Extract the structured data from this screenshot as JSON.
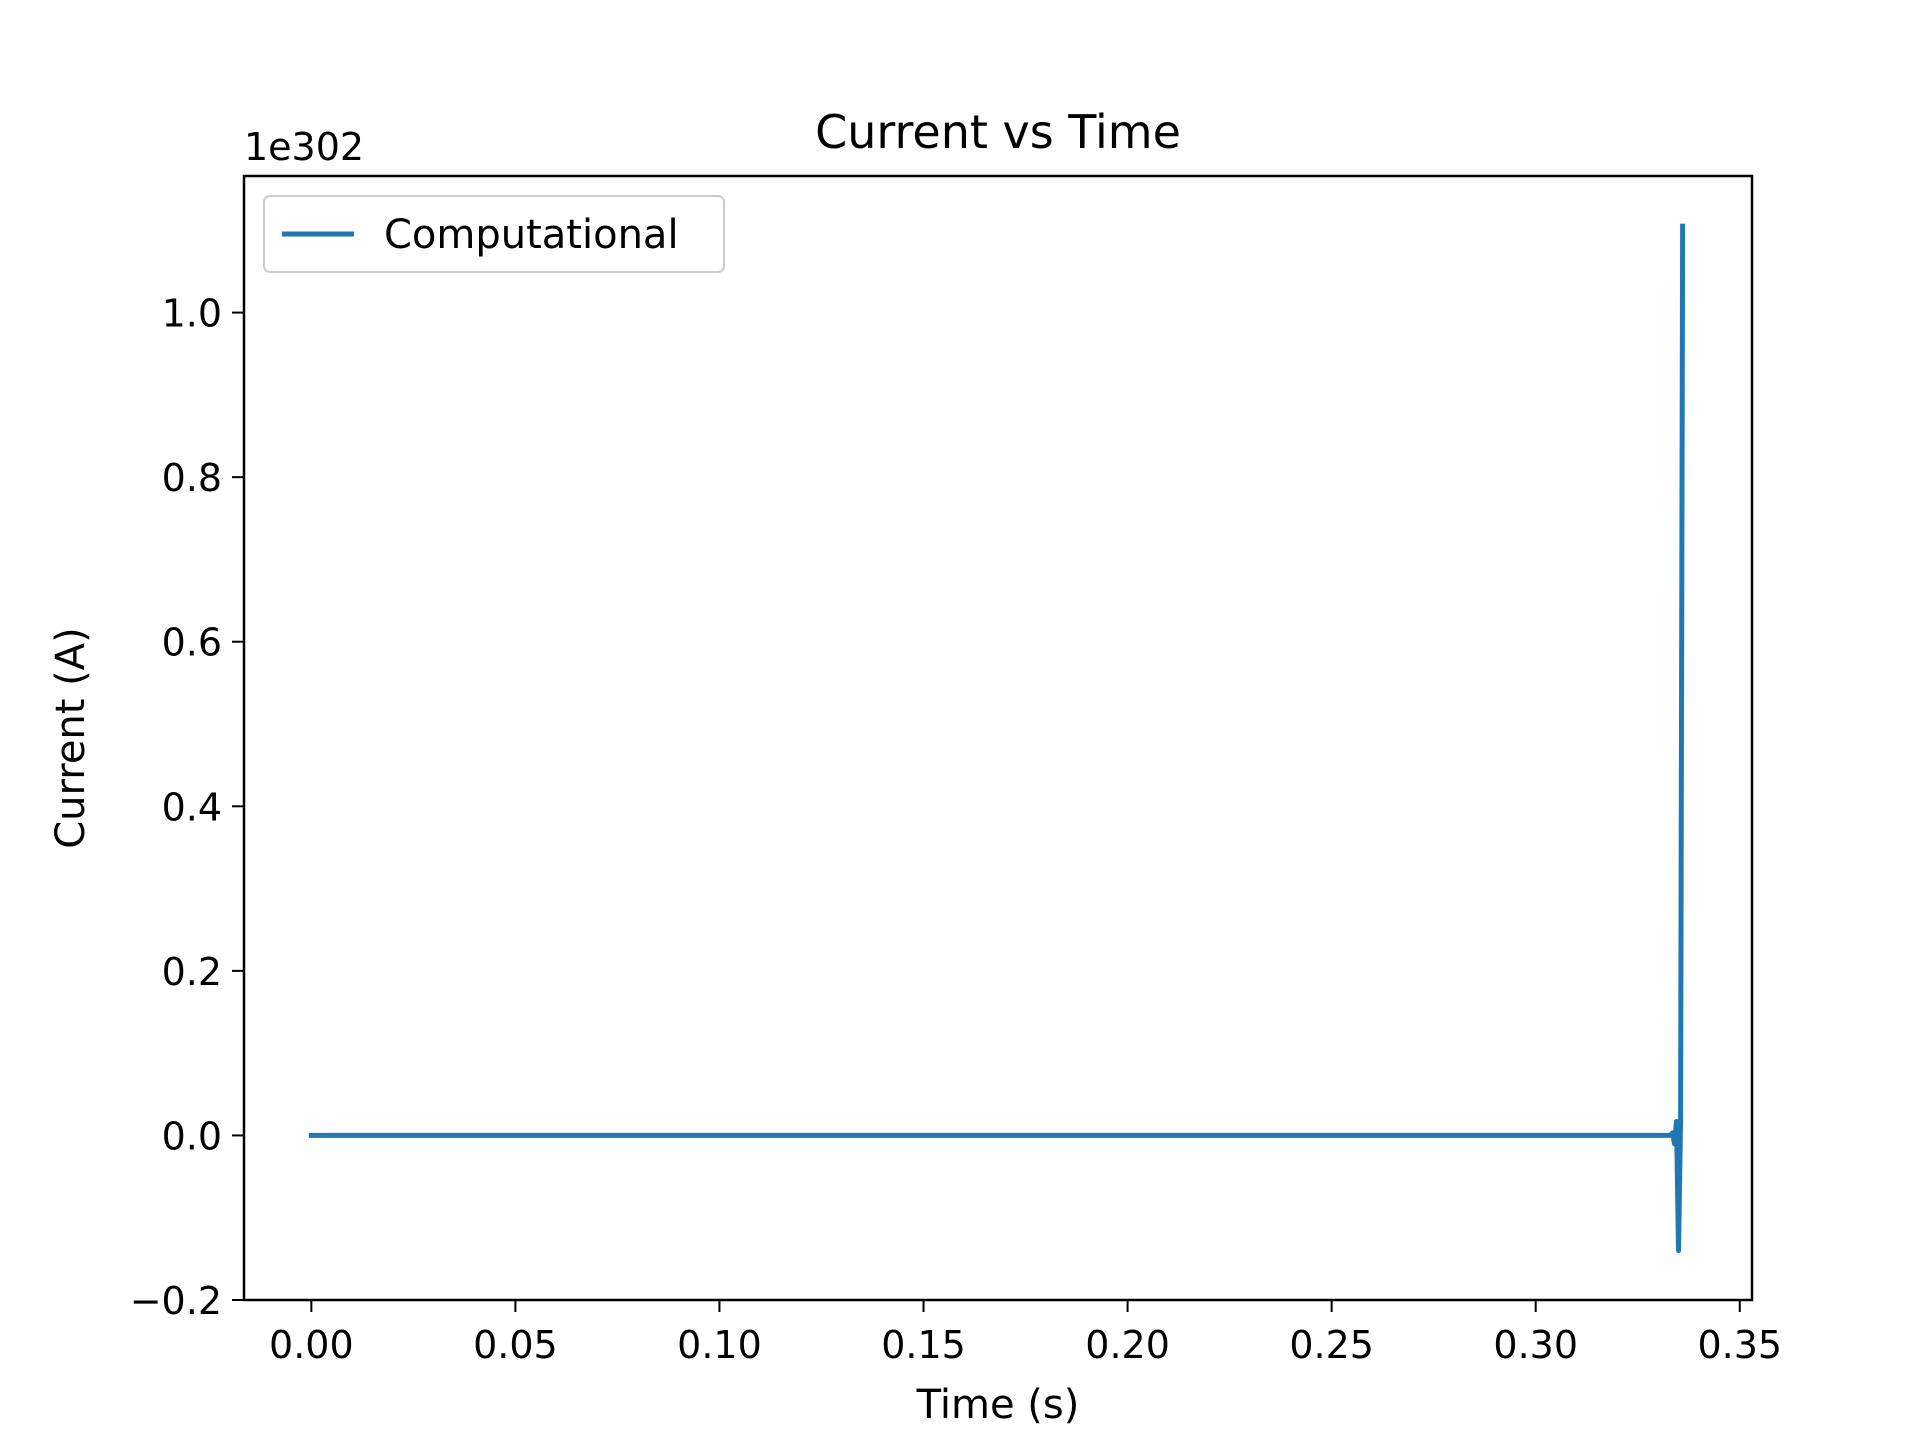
{
  "chart_data": {
    "type": "line",
    "title": "Current vs Time",
    "xlabel": "Time (s)",
    "ylabel": "Current (A)",
    "y_offset_text": "1e302",
    "xlim": [
      -0.0165,
      0.353
    ],
    "ylim": [
      -0.2,
      1.166
    ],
    "x_ticks": [
      0.0,
      0.05,
      0.1,
      0.15,
      0.2,
      0.25,
      0.3,
      0.35
    ],
    "x_tick_labels": [
      "0.00",
      "0.05",
      "0.10",
      "0.15",
      "0.20",
      "0.25",
      "0.30",
      "0.35"
    ],
    "y_ticks": [
      -0.2,
      0.0,
      0.2,
      0.4,
      0.6,
      0.8,
      1.0
    ],
    "y_tick_labels": [
      "−0.2",
      "0.0",
      "0.2",
      "0.4",
      "0.6",
      "0.8",
      "1.0"
    ],
    "grid": false,
    "legend_position": "top-left",
    "series": [
      {
        "name": "Computational",
        "color": "#1f77b4",
        "x": [
          0.0,
          0.05,
          0.1,
          0.15,
          0.2,
          0.25,
          0.3,
          0.333,
          0.3335,
          0.334,
          0.3345,
          0.335,
          0.3355,
          0.336
        ],
        "y": [
          0.0,
          0.0,
          0.0,
          0.0,
          0.0,
          0.0,
          0.0,
          0.0,
          0.003,
          -0.01,
          0.017,
          -0.14,
          0.02,
          1.105
        ]
      }
    ]
  }
}
